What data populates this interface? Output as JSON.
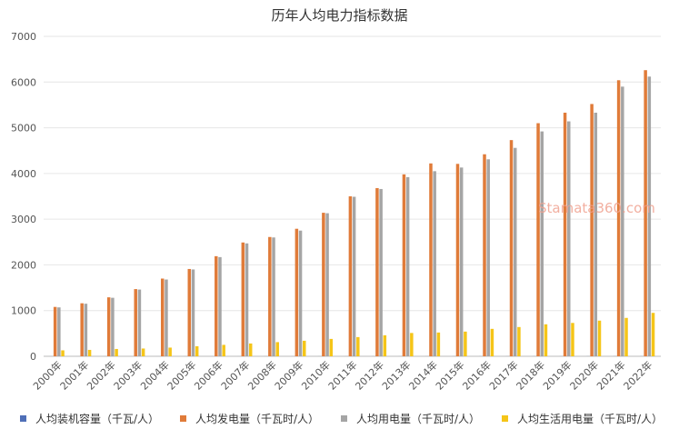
{
  "watermark": "Stamata360.com",
  "chart_data": {
    "type": "bar",
    "title": "历年人均电力指标数据",
    "categories": [
      "2000年",
      "2001年",
      "2002年",
      "2003年",
      "2004年",
      "2005年",
      "2006年",
      "2007年",
      "2008年",
      "2009年",
      "2010年",
      "2011年",
      "2012年",
      "2013年",
      "2014年",
      "2015年",
      "2016年",
      "2017年",
      "2018年",
      "2019年",
      "2020年",
      "2021年",
      "2022年"
    ],
    "ylim": [
      0,
      7000
    ],
    "yticks": [
      0,
      1000,
      2000,
      3000,
      4000,
      5000,
      6000,
      7000
    ],
    "grid": true,
    "legend_position": "bottom",
    "series": [
      {
        "name": "人均装机容量（千瓦/人）",
        "color": "#4f6fb7",
        "values": [
          0.25,
          0.26,
          0.28,
          0.3,
          0.34,
          0.39,
          0.47,
          0.54,
          0.6,
          0.66,
          0.72,
          0.79,
          0.85,
          0.92,
          1.0,
          1.11,
          1.19,
          1.28,
          1.36,
          1.43,
          1.56,
          1.68,
          1.81
        ]
      },
      {
        "name": "人均发电量（千瓦时/人）",
        "color": "#e07b39",
        "values": [
          1080,
          1160,
          1290,
          1470,
          1700,
          1910,
          2190,
          2490,
          2610,
          2790,
          3140,
          3500,
          3680,
          3980,
          4220,
          4210,
          4420,
          4730,
          5100,
          5330,
          5520,
          6040,
          6260
        ]
      },
      {
        "name": "人均用电量（千瓦时/人）",
        "color": "#a5a5a5",
        "values": [
          1070,
          1150,
          1280,
          1460,
          1680,
          1900,
          2170,
          2470,
          2600,
          2750,
          3130,
          3490,
          3660,
          3920,
          4050,
          4130,
          4310,
          4560,
          4920,
          5140,
          5330,
          5900,
          6120
        ]
      },
      {
        "name": "人均生活用电量（千瓦时/人）",
        "color": "#f5c518",
        "values": [
          130,
          140,
          160,
          170,
          190,
          220,
          250,
          280,
          310,
          340,
          380,
          420,
          460,
          510,
          520,
          540,
          600,
          640,
          700,
          730,
          780,
          840,
          950
        ]
      }
    ]
  }
}
